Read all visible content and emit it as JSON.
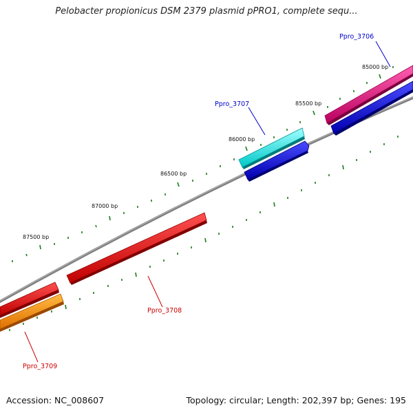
{
  "title": "Pelobacter propionicus DSM 2379 plasmid pPRO1, complete sequ...",
  "footer": {
    "accession": "Accession: NC_008607",
    "summary": "Topology: circular; Length: 202,397 bp; Genes: 195"
  },
  "scale_labels": [
    "85000 bp",
    "85500 bp",
    "86000 bp",
    "86500 bp",
    "87000 bp",
    "87500 bp"
  ],
  "genes": [
    {
      "label": "Ppro_3706",
      "color": "#e0157a",
      "label_color": "#0000cc"
    },
    {
      "label": "Ppro_3707",
      "color": "#00e8e8",
      "label_color": "#0000cc"
    },
    {
      "label": "Ppro_3708",
      "color": "#ee0000",
      "label_color": "#cc0000"
    },
    {
      "label": "Ppro_3709",
      "color": "#ff9900",
      "label_color": "#cc0000"
    }
  ],
  "colors": {
    "backbone": "#808080",
    "ticks": "#1a7a1a",
    "blue_feature": "#0000dd"
  }
}
